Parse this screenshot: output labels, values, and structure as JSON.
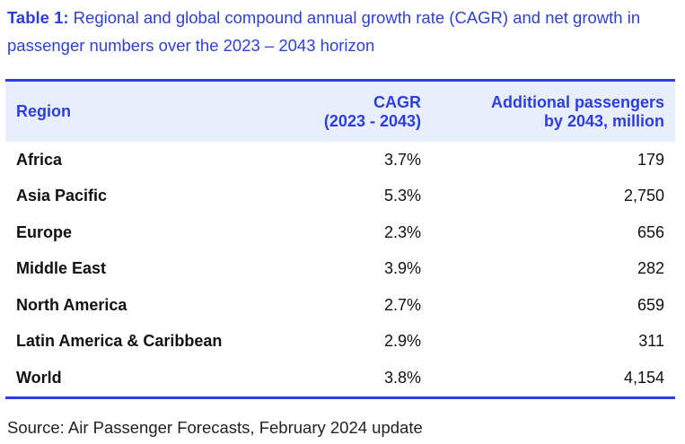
{
  "caption": {
    "lead": "Table 1:",
    "text": " Regional and global compound annual growth rate (CAGR) and net growth in passenger numbers over the 2023 – 2043 horizon"
  },
  "table": {
    "headers": {
      "region": "Region",
      "cagr_line1": "CAGR",
      "cagr_line2": "(2023 - 2043)",
      "pass_line1": "Additional passengers",
      "pass_line2": "by 2043, million"
    },
    "rows": [
      {
        "region": "Africa",
        "cagr": "3.7%",
        "additional": "179"
      },
      {
        "region": "Asia Pacific",
        "cagr": "5.3%",
        "additional": "2,750"
      },
      {
        "region": "Europe",
        "cagr": "2.3%",
        "additional": "656"
      },
      {
        "region": "Middle East",
        "cagr": "3.9%",
        "additional": "282"
      },
      {
        "region": "North America",
        "cagr": "2.7%",
        "additional": "659"
      },
      {
        "region": "Latin America & Caribbean",
        "cagr": "2.9%",
        "additional": "311"
      },
      {
        "region": "World",
        "cagr": "3.8%",
        "additional": "4,154"
      }
    ]
  },
  "source": "Source: Air Passenger Forecasts, February 2024 update",
  "colors": {
    "accent": "#2c3ee0",
    "header_background": "#e8eefb",
    "text": "#111111"
  }
}
